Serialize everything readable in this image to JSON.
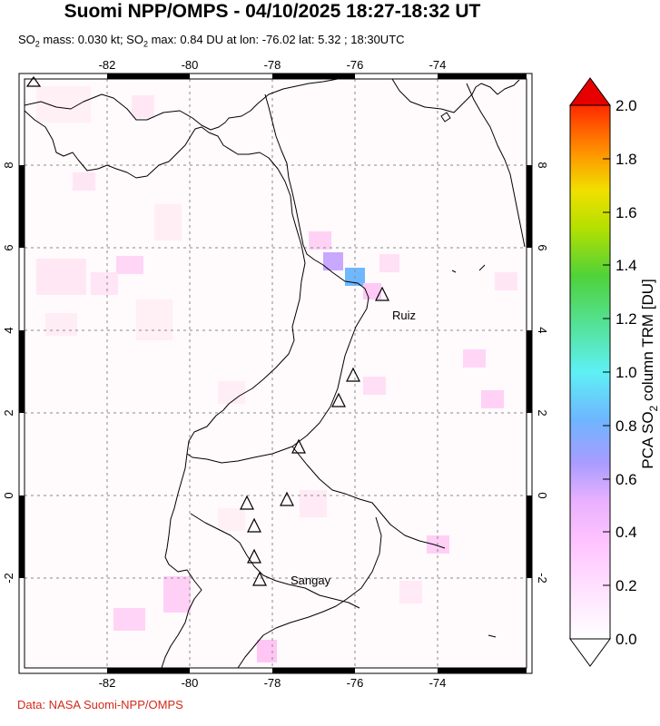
{
  "title": "Suomi NPP/OMPS - 04/10/2025 18:27-18:32 UT",
  "subtitle": {
    "part1": "SO",
    "sub1": "2",
    "part2": " mass: 0.030 kt; SO",
    "sub2": "2",
    "part3": " max: 0.84 DU at lon: -76.02 lat: 5.32 ; 18:30UTC"
  },
  "map": {
    "lon_ticks": [
      "-82",
      "-80",
      "-78",
      "-76",
      "-74"
    ],
    "lat_ticks": [
      "8",
      "6",
      "4",
      "2",
      "0",
      "-2"
    ],
    "volcano_labels": {
      "ruiz": "Ruiz",
      "sangay": "Sangay"
    }
  },
  "colorbar": {
    "title_prefix": "PCA SO",
    "title_sub": "2",
    "title_suffix": " column TRM [DU]",
    "ticks": [
      "0.0",
      "0.2",
      "0.4",
      "0.6",
      "0.8",
      "1.0",
      "1.2",
      "1.4",
      "1.6",
      "1.8",
      "2.0"
    ],
    "range": [
      0.0,
      2.0
    ],
    "colors": [
      "#ffffff",
      "#ffd9ff",
      "#ffb3ff",
      "#d6a8ff",
      "#9c9cff",
      "#6ec4ff",
      "#5ef2f2",
      "#55e88a",
      "#5fd11e",
      "#c8e000",
      "#f5e600",
      "#ff9a00",
      "#ff3c00",
      "#e60000"
    ]
  },
  "credit": "Data: NASA Suomi-NPP/OMPS"
}
